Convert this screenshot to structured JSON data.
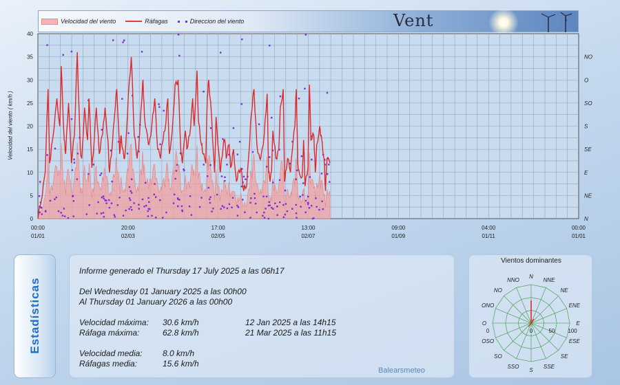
{
  "chart_data": {
    "type": "area",
    "title": "Vent",
    "legend": [
      "Velocidad del viento",
      "Ráfagas",
      "Direccion del viento"
    ],
    "ylabel": "Velocidad del viento  ( km/h )",
    "ylim": [
      0,
      40
    ],
    "yticks": [
      "0",
      "5",
      "10",
      "15",
      "20",
      "25",
      "30",
      "35",
      "40"
    ],
    "dir_ticks": [
      "N",
      "NE",
      "E",
      "SE",
      "S",
      "SO",
      "O",
      "NO"
    ],
    "xticks": [
      {
        "time": "00:00",
        "date": "01/01"
      },
      {
        "time": "20:00",
        "date": "02/03"
      },
      {
        "time": "17:00",
        "date": "02/05"
      },
      {
        "time": "13:00",
        "date": "02/07"
      },
      {
        "time": "09:00",
        "date": "01/09"
      },
      {
        "time": "04:00",
        "date": "01/11"
      },
      {
        "time": "00:00",
        "date": "01/01"
      }
    ],
    "x_end_fraction": 0.54,
    "gust_keypoints": [
      [
        0,
        0
      ],
      [
        3,
        5
      ],
      [
        5,
        10
      ],
      [
        7,
        28
      ],
      [
        8,
        12
      ],
      [
        10,
        17
      ],
      [
        13,
        26
      ],
      [
        15,
        20
      ],
      [
        16,
        33
      ],
      [
        18,
        17
      ],
      [
        19,
        14
      ],
      [
        21,
        25
      ],
      [
        23,
        12
      ],
      [
        25,
        18
      ],
      [
        27,
        36
      ],
      [
        29,
        15
      ],
      [
        30,
        13
      ],
      [
        32,
        24
      ],
      [
        34,
        17
      ],
      [
        35,
        26
      ],
      [
        37,
        11
      ],
      [
        38,
        14
      ],
      [
        40,
        24
      ],
      [
        42,
        14
      ],
      [
        44,
        18
      ],
      [
        45,
        21
      ],
      [
        46,
        24
      ],
      [
        48,
        17
      ],
      [
        49,
        10
      ],
      [
        51,
        16
      ],
      [
        53,
        24
      ],
      [
        54,
        28
      ],
      [
        56,
        14
      ],
      [
        57,
        18
      ],
      [
        59,
        13
      ],
      [
        60,
        15
      ],
      [
        62,
        27
      ],
      [
        64,
        35
      ],
      [
        66,
        18
      ],
      [
        68,
        13
      ],
      [
        69,
        15
      ],
      [
        71,
        25
      ],
      [
        72,
        30
      ],
      [
        73,
        22
      ],
      [
        75,
        18
      ],
      [
        76,
        16
      ],
      [
        78,
        20
      ],
      [
        80,
        26
      ],
      [
        82,
        15
      ],
      [
        84,
        13
      ],
      [
        85,
        16
      ],
      [
        87,
        19
      ],
      [
        89,
        26
      ],
      [
        90,
        14
      ],
      [
        92,
        19
      ],
      [
        94,
        29
      ],
      [
        96,
        30
      ],
      [
        98,
        14
      ],
      [
        99,
        12
      ],
      [
        101,
        19
      ],
      [
        102,
        15
      ],
      [
        104,
        18
      ],
      [
        106,
        26
      ],
      [
        107,
        20
      ],
      [
        109,
        32
      ],
      [
        110,
        21
      ],
      [
        112,
        16
      ],
      [
        113,
        14
      ],
      [
        115,
        12
      ],
      [
        116,
        26
      ],
      [
        117,
        30
      ],
      [
        119,
        22
      ],
      [
        121,
        10
      ],
      [
        122,
        22
      ],
      [
        124,
        14
      ],
      [
        125,
        10
      ],
      [
        127,
        16
      ],
      [
        128,
        17
      ],
      [
        129,
        13
      ],
      [
        131,
        16
      ],
      [
        132,
        11
      ],
      [
        134,
        15
      ],
      [
        136,
        8
      ],
      [
        137,
        10
      ],
      [
        139,
        11
      ],
      [
        141,
        6
      ],
      [
        143,
        7
      ],
      [
        145,
        16
      ],
      [
        146,
        22
      ],
      [
        148,
        28
      ],
      [
        150,
        16
      ],
      [
        152,
        13
      ],
      [
        153,
        14
      ],
      [
        155,
        18
      ],
      [
        157,
        27
      ],
      [
        158,
        10
      ],
      [
        159,
        8
      ],
      [
        160,
        10
      ],
      [
        161,
        19
      ],
      [
        163,
        13
      ],
      [
        165,
        15
      ],
      [
        166,
        24
      ],
      [
        168,
        28
      ],
      [
        169,
        8
      ],
      [
        171,
        13
      ],
      [
        173,
        10
      ],
      [
        174,
        14
      ],
      [
        176,
        20
      ],
      [
        177,
        28
      ],
      [
        178,
        12
      ],
      [
        179,
        10
      ],
      [
        181,
        9
      ],
      [
        182,
        17
      ],
      [
        183,
        7
      ],
      [
        185,
        11
      ],
      [
        186,
        29
      ],
      [
        187,
        17
      ],
      [
        189,
        18
      ],
      [
        190,
        10
      ],
      [
        191,
        16
      ],
      [
        193,
        20
      ],
      [
        194,
        18
      ],
      [
        196,
        13
      ],
      [
        197,
        6
      ],
      [
        198,
        13
      ],
      [
        200,
        12
      ]
    ],
    "x_domain_days": 366,
    "x_data_days": 198,
    "speed_max_kmh": 30.6,
    "gust_max_kmh": 62.8,
    "speed_mean_kmh": 8.0,
    "gust_mean_kmh": 15.6
  },
  "colors": {
    "area": "#f0a0a0",
    "gust_line": "#e02828",
    "direction": "#7b2fd8",
    "plot_bg": "#c9dbee",
    "grid": "#8da6c2"
  },
  "banner": {
    "title": "Vent"
  },
  "stats_tab": {
    "label": "Estadísticas"
  },
  "report": {
    "generated": "Informe generado el Thursday 17 July 2025 a las 06h17",
    "from": "Del Wednesday 01 January 2025 a las 00h00",
    "to": "Al Thursday 01 January 2026 a las 00h00",
    "max_speed_label": "Velocidad máxima:",
    "max_speed_value": "30.6 km/h",
    "max_speed_date": "12 Jan 2025 a las 14h15",
    "max_gust_label": "Ráfaga máxima:",
    "max_gust_value": "62.8 km/h",
    "max_gust_date": "21 Mar 2025 a las 11h15",
    "mean_speed_label": "Velocidad media:",
    "mean_speed_value": "8.0 km/h",
    "mean_gust_label": "Ráfagas media:",
    "mean_gust_value": "15.6 km/h",
    "brand": "Balearsmeteo"
  },
  "rose": {
    "title": "Vientos dominantes",
    "directions": [
      "N",
      "NNE",
      "NE",
      "ENE",
      "E",
      "ESE",
      "SE",
      "SSE",
      "S",
      "SSO",
      "SO",
      "OSO",
      "O",
      "ONO",
      "NO",
      "NNO"
    ],
    "scale_labels": [
      "0",
      "0",
      "50",
      "100"
    ],
    "dominant": "N"
  }
}
